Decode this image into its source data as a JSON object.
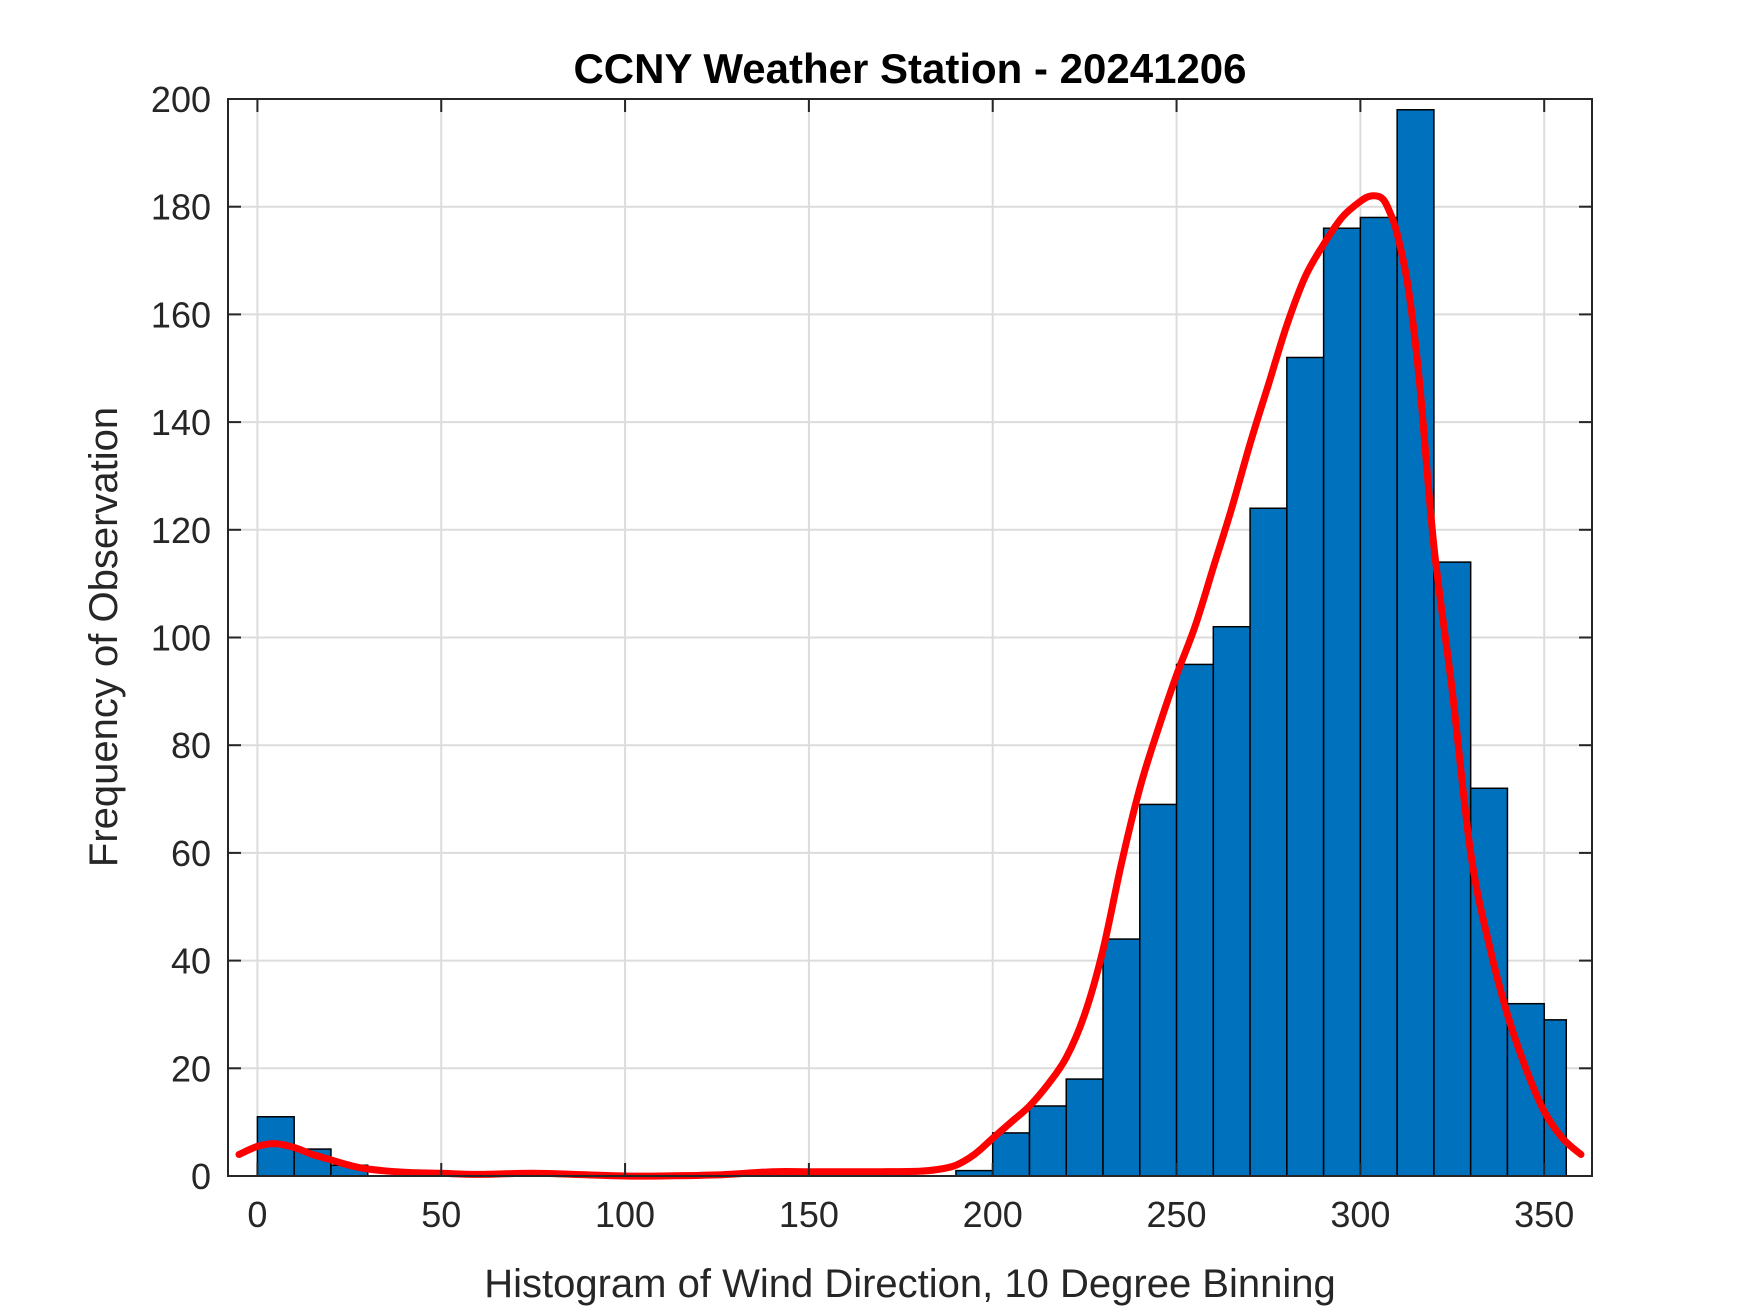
{
  "chart_data": {
    "type": "bar",
    "title": "CCNY Weather Station - 20241206",
    "xlabel": "Histogram of Wind Direction, 10 Degree Binning",
    "ylabel": "Frequency of Observation",
    "xlim": [
      -8,
      363
    ],
    "ylim": [
      0,
      200
    ],
    "xticks": [
      0,
      50,
      100,
      150,
      200,
      250,
      300,
      350
    ],
    "yticks": [
      0,
      20,
      40,
      60,
      80,
      100,
      120,
      140,
      160,
      180,
      200
    ],
    "grid": true,
    "bin_width": 10,
    "bins": [
      {
        "start": 0,
        "end": 10,
        "count": 11
      },
      {
        "start": 10,
        "end": 20,
        "count": 5
      },
      {
        "start": 20,
        "end": 30,
        "count": 2
      },
      {
        "start": 30,
        "end": 40,
        "count": 0
      },
      {
        "start": 40,
        "end": 50,
        "count": 0
      },
      {
        "start": 50,
        "end": 60,
        "count": 0
      },
      {
        "start": 60,
        "end": 70,
        "count": 0
      },
      {
        "start": 70,
        "end": 80,
        "count": 0
      },
      {
        "start": 80,
        "end": 90,
        "count": 0
      },
      {
        "start": 90,
        "end": 100,
        "count": 0
      },
      {
        "start": 100,
        "end": 110,
        "count": 0
      },
      {
        "start": 110,
        "end": 120,
        "count": 0
      },
      {
        "start": 120,
        "end": 130,
        "count": 0
      },
      {
        "start": 130,
        "end": 140,
        "count": 0
      },
      {
        "start": 140,
        "end": 150,
        "count": 0
      },
      {
        "start": 150,
        "end": 160,
        "count": 0
      },
      {
        "start": 160,
        "end": 170,
        "count": 0
      },
      {
        "start": 170,
        "end": 180,
        "count": 0
      },
      {
        "start": 180,
        "end": 190,
        "count": 0
      },
      {
        "start": 190,
        "end": 200,
        "count": 1
      },
      {
        "start": 200,
        "end": 210,
        "count": 8
      },
      {
        "start": 210,
        "end": 220,
        "count": 13
      },
      {
        "start": 220,
        "end": 230,
        "count": 18
      },
      {
        "start": 230,
        "end": 240,
        "count": 44
      },
      {
        "start": 240,
        "end": 250,
        "count": 69
      },
      {
        "start": 250,
        "end": 260,
        "count": 95
      },
      {
        "start": 260,
        "end": 270,
        "count": 102
      },
      {
        "start": 270,
        "end": 280,
        "count": 124
      },
      {
        "start": 280,
        "end": 290,
        "count": 152
      },
      {
        "start": 290,
        "end": 300,
        "count": 176
      },
      {
        "start": 300,
        "end": 310,
        "count": 178
      },
      {
        "start": 310,
        "end": 320,
        "count": 198
      },
      {
        "start": 320,
        "end": 330,
        "count": 114
      },
      {
        "start": 330,
        "end": 340,
        "count": 72
      },
      {
        "start": 340,
        "end": 350,
        "count": 32
      },
      {
        "start": 350,
        "end": 356,
        "count": 29
      }
    ],
    "fit_curve": {
      "x": [
        -5,
        0,
        5,
        10,
        15,
        20,
        25,
        30,
        40,
        50,
        60,
        75,
        90,
        100,
        110,
        125,
        140,
        150,
        160,
        170,
        180,
        185,
        190,
        195,
        200,
        205,
        210,
        215,
        220,
        225,
        230,
        235,
        240,
        245,
        250,
        255,
        260,
        265,
        270,
        275,
        280,
        285,
        290,
        295,
        300,
        303,
        306,
        308,
        310,
        313,
        316,
        320,
        325,
        330,
        335,
        340,
        345,
        350,
        355,
        360
      ],
      "y": [
        4,
        5.5,
        6,
        5.3,
        4,
        3,
        2,
        1.3,
        0.7,
        0.5,
        0.3,
        0.5,
        0.2,
        0,
        0,
        0.2,
        0.8,
        0.8,
        0.8,
        0.8,
        0.9,
        1.2,
        2,
        4,
        7,
        10,
        13,
        17,
        22,
        30,
        42,
        58,
        72,
        83,
        93,
        102,
        113,
        124,
        136,
        147,
        158,
        167,
        173,
        178,
        181,
        182,
        181.5,
        179,
        175,
        165,
        148,
        117,
        90,
        60,
        43,
        30,
        20,
        12,
        7,
        4
      ]
    },
    "colors": {
      "bar_fill": "#0072bd",
      "bar_edge": "#000000",
      "fit_line": "#ff0000",
      "grid": "#dcdcdc",
      "axis": "#262626"
    }
  }
}
